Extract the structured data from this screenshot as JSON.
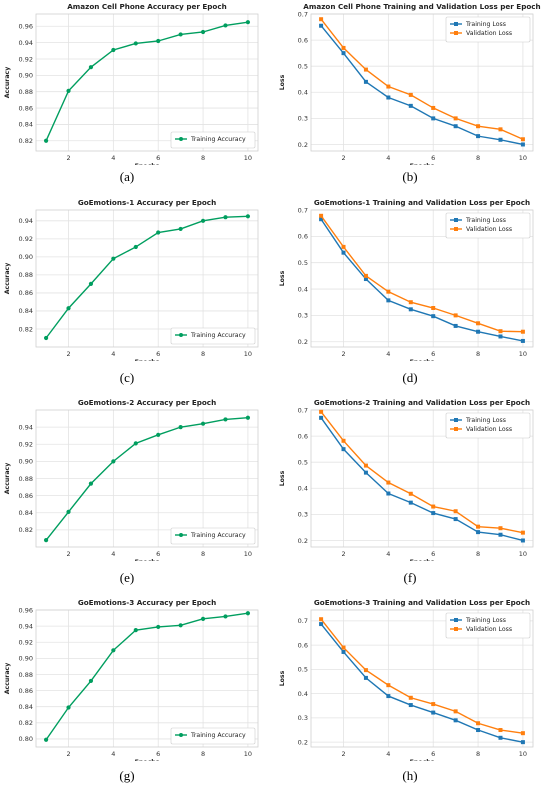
{
  "chart_data": [
    {
      "type": "line",
      "title": "Amazon Cell Phone Accuracy per Epoch",
      "xlabel": "Epochs",
      "ylabel": "Accuracy",
      "x": [
        1,
        2,
        3,
        4,
        5,
        6,
        7,
        8,
        9,
        10
      ],
      "xticks": [
        2,
        4,
        6,
        8,
        10
      ],
      "ylim": [
        0.8075,
        0.975
      ],
      "yticks": [
        0.82,
        0.84,
        0.86,
        0.88,
        0.9,
        0.92,
        0.94,
        0.96
      ],
      "ytick_decimals": 2,
      "series": [
        {
          "name": "Training Accuracy",
          "color": "#009e5f",
          "values": [
            0.82,
            0.881,
            0.91,
            0.931,
            0.939,
            0.942,
            0.95,
            0.953,
            0.961,
            0.965
          ]
        }
      ],
      "legend": "bottom-right",
      "grid": true,
      "panel_label": "(a)"
    },
    {
      "type": "line",
      "title": "Amazon Cell Phone Training and Validation Loss per Epoch",
      "xlabel": "Epochs",
      "ylabel": "Loss",
      "x": [
        1,
        2,
        3,
        4,
        5,
        6,
        7,
        8,
        9,
        10
      ],
      "xticks": [
        2,
        4,
        6,
        8,
        10
      ],
      "ylim": [
        0.175,
        0.7
      ],
      "yticks": [
        0.2,
        0.3,
        0.4,
        0.5,
        0.6,
        0.7
      ],
      "ytick_decimals": 1,
      "series": [
        {
          "name": "Training Loss",
          "color": "#1f77b4",
          "values": [
            0.655,
            0.55,
            0.44,
            0.38,
            0.348,
            0.3,
            0.27,
            0.232,
            0.218,
            0.2
          ]
        },
        {
          "name": "Validation Loss",
          "color": "#ff7f0e",
          "values": [
            0.68,
            0.57,
            0.487,
            0.422,
            0.39,
            0.34,
            0.3,
            0.27,
            0.258,
            0.22
          ]
        }
      ],
      "legend": "top-right",
      "grid": true,
      "panel_label": "(b)"
    },
    {
      "type": "line",
      "title": "GoEmotions-1 Accuracy per Epoch",
      "xlabel": "Epochs",
      "ylabel": "Accuracy",
      "x": [
        1,
        2,
        3,
        4,
        5,
        6,
        7,
        8,
        9,
        10
      ],
      "xticks": [
        2,
        4,
        6,
        8,
        10
      ],
      "ylim": [
        0.8,
        0.952
      ],
      "yticks": [
        0.82,
        0.84,
        0.86,
        0.88,
        0.9,
        0.92,
        0.94
      ],
      "ytick_decimals": 2,
      "series": [
        {
          "name": "Training Accuracy",
          "color": "#009e5f",
          "values": [
            0.81,
            0.843,
            0.87,
            0.898,
            0.911,
            0.927,
            0.931,
            0.94,
            0.944,
            0.945
          ]
        }
      ],
      "legend": "bottom-right",
      "grid": true,
      "panel_label": "(c)"
    },
    {
      "type": "line",
      "title": "GoEmotions-1 Training and Validation Loss per Epoch",
      "xlabel": "Epochs",
      "ylabel": "Loss",
      "x": [
        1,
        2,
        3,
        4,
        5,
        6,
        7,
        8,
        9,
        10
      ],
      "xticks": [
        2,
        4,
        6,
        8,
        10
      ],
      "ylim": [
        0.18,
        0.7
      ],
      "yticks": [
        0.2,
        0.3,
        0.4,
        0.5,
        0.6,
        0.7
      ],
      "ytick_decimals": 1,
      "series": [
        {
          "name": "Training Loss",
          "color": "#1f77b4",
          "values": [
            0.665,
            0.538,
            0.438,
            0.357,
            0.323,
            0.297,
            0.26,
            0.238,
            0.22,
            0.203
          ]
        },
        {
          "name": "Validation Loss",
          "color": "#ff7f0e",
          "values": [
            0.678,
            0.56,
            0.45,
            0.39,
            0.35,
            0.328,
            0.3,
            0.27,
            0.24,
            0.238
          ]
        }
      ],
      "legend": "top-right",
      "grid": true,
      "panel_label": "(d)"
    },
    {
      "type": "line",
      "title": "GoEmotions-2 Accuracy per Epoch",
      "xlabel": "Epochs",
      "ylabel": "Accuracy",
      "x": [
        1,
        2,
        3,
        4,
        5,
        6,
        7,
        8,
        9,
        10
      ],
      "xticks": [
        2,
        4,
        6,
        8,
        10
      ],
      "ylim": [
        0.8,
        0.96
      ],
      "yticks": [
        0.82,
        0.84,
        0.86,
        0.88,
        0.9,
        0.92,
        0.94
      ],
      "ytick_decimals": 2,
      "series": [
        {
          "name": "Training Accuracy",
          "color": "#009e5f",
          "values": [
            0.808,
            0.841,
            0.874,
            0.9,
            0.921,
            0.931,
            0.94,
            0.944,
            0.949,
            0.951
          ]
        }
      ],
      "legend": "bottom-right",
      "grid": true,
      "panel_label": "(e)"
    },
    {
      "type": "line",
      "title": "GoEmotions-2 Training and Validation Loss per Epoch",
      "xlabel": "Epochs",
      "ylabel": "Loss",
      "x": [
        1,
        2,
        3,
        4,
        5,
        6,
        7,
        8,
        9,
        10
      ],
      "xticks": [
        2,
        4,
        6,
        8,
        10
      ],
      "ylim": [
        0.175,
        0.7
      ],
      "yticks": [
        0.2,
        0.3,
        0.4,
        0.5,
        0.6,
        0.7
      ],
      "ytick_decimals": 1,
      "series": [
        {
          "name": "Training Loss",
          "color": "#1f77b4",
          "values": [
            0.67,
            0.55,
            0.46,
            0.38,
            0.345,
            0.305,
            0.282,
            0.232,
            0.222,
            0.2
          ]
        },
        {
          "name": "Validation Loss",
          "color": "#ff7f0e",
          "values": [
            0.693,
            0.582,
            0.487,
            0.422,
            0.379,
            0.33,
            0.312,
            0.253,
            0.247,
            0.23
          ]
        }
      ],
      "legend": "top-right",
      "grid": true,
      "panel_label": "(f)"
    },
    {
      "type": "line",
      "title": "GoEmotions-3 Accuracy per Epoch",
      "xlabel": "Epochs",
      "ylabel": "Accuracy",
      "x": [
        1,
        2,
        3,
        4,
        5,
        6,
        7,
        8,
        9,
        10
      ],
      "xticks": [
        2,
        4,
        6,
        8,
        10
      ],
      "ylim": [
        0.79,
        0.96
      ],
      "yticks": [
        0.8,
        0.82,
        0.84,
        0.86,
        0.88,
        0.9,
        0.92,
        0.94,
        0.96
      ],
      "ytick_decimals": 2,
      "series": [
        {
          "name": "Training Accuracy",
          "color": "#009e5f",
          "values": [
            0.799,
            0.839,
            0.872,
            0.91,
            0.935,
            0.939,
            0.941,
            0.949,
            0.952,
            0.956
          ]
        }
      ],
      "legend": "bottom-right",
      "grid": true,
      "panel_label": "(g)"
    },
    {
      "type": "line",
      "title": "GoEmotions-3 Training and Validation Loss per Epoch",
      "xlabel": "Epochs",
      "ylabel": "Loss",
      "x": [
        1,
        2,
        3,
        4,
        5,
        6,
        7,
        8,
        9,
        10
      ],
      "xticks": [
        2,
        4,
        6,
        8,
        10
      ],
      "ylim": [
        0.18,
        0.745
      ],
      "yticks": [
        0.2,
        0.3,
        0.4,
        0.5,
        0.6,
        0.7
      ],
      "ytick_decimals": 1,
      "series": [
        {
          "name": "Training Loss",
          "color": "#1f77b4",
          "values": [
            0.687,
            0.572,
            0.465,
            0.39,
            0.353,
            0.322,
            0.29,
            0.25,
            0.218,
            0.2
          ]
        },
        {
          "name": "Validation Loss",
          "color": "#ff7f0e",
          "values": [
            0.707,
            0.59,
            0.497,
            0.435,
            0.383,
            0.357,
            0.327,
            0.278,
            0.25,
            0.237
          ]
        }
      ],
      "legend": "top-right",
      "grid": true,
      "panel_label": "(h)"
    }
  ]
}
